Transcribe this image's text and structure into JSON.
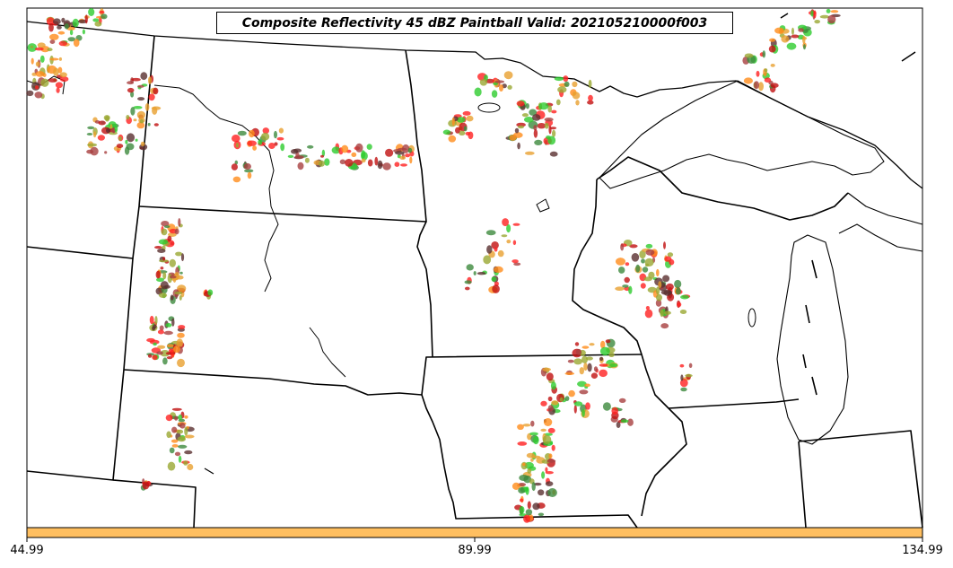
{
  "title": "Composite Reflectivity 45 dBZ Paintball Valid: 202105210000f003",
  "colorbar": {
    "tick_labels": [
      "44.99",
      "89.99",
      "134.99"
    ],
    "fill_color": "#ffbf60"
  },
  "colors": {
    "paintball": [
      "#ff2020",
      "#2ecc2e",
      "#a84040",
      "#ff8c1a",
      "#9aa832",
      "#3d8a3d",
      "#e8a030",
      "#c01010",
      "#5a3030"
    ],
    "outline": "#000000"
  },
  "map": {
    "region": "Upper Midwest / Northern Plains United States",
    "features": [
      "state-boundaries",
      "country-border",
      "lake-superior",
      "lake-michigan",
      "rivers"
    ]
  }
}
